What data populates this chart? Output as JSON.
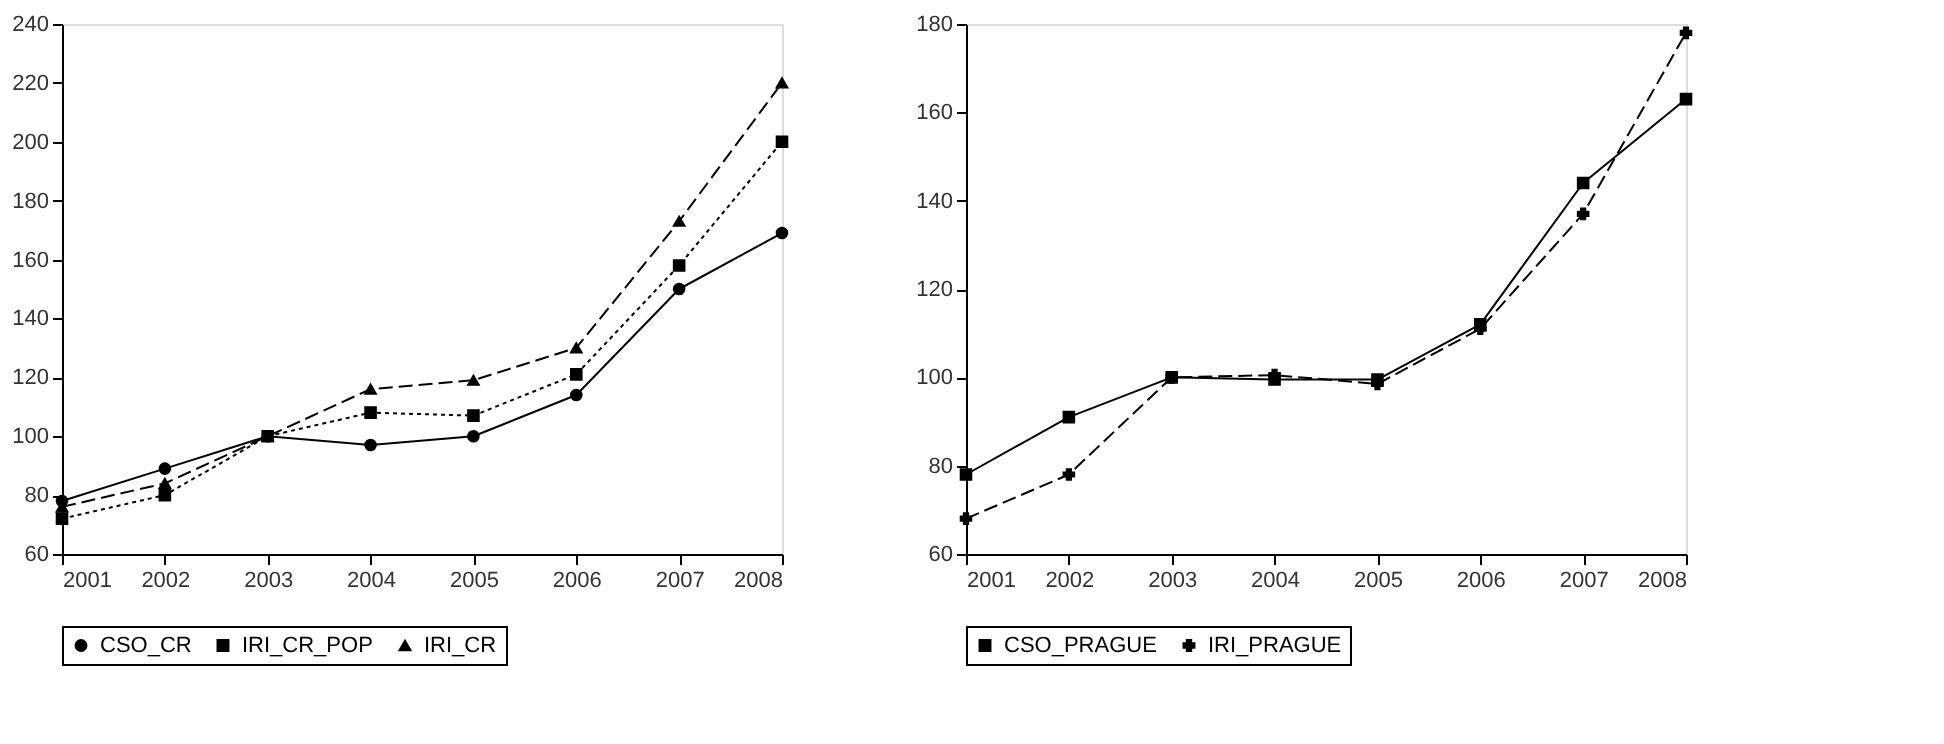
{
  "chart_data": [
    {
      "type": "line",
      "x": [
        2001,
        2002,
        2003,
        2004,
        2005,
        2006,
        2007,
        2008
      ],
      "xlim": [
        2001,
        2008
      ],
      "xticks": [
        2001,
        2002,
        2003,
        2004,
        2005,
        2006,
        2007,
        2008
      ],
      "ylim": [
        60,
        240
      ],
      "yticks": [
        60,
        80,
        100,
        120,
        140,
        160,
        180,
        200,
        220,
        240
      ],
      "grid": false,
      "legend": "bottom",
      "series": [
        {
          "name": "CSO_CR",
          "color": "#000000",
          "marker": "circle",
          "line_style": "solid",
          "values": [
            78,
            89,
            100,
            97,
            100,
            114,
            150,
            169
          ]
        },
        {
          "name": "IRI_CR_POP",
          "color": "#000000",
          "marker": "square",
          "line_style": "dotted",
          "values": [
            72,
            80,
            100,
            108,
            107,
            121,
            158,
            200
          ]
        },
        {
          "name": "IRI_CR",
          "color": "#000000",
          "marker": "triangle",
          "line_style": "dashed",
          "values": [
            76,
            84,
            100,
            116,
            119,
            130,
            173,
            220
          ]
        }
      ]
    },
    {
      "type": "line",
      "x": [
        2001,
        2002,
        2003,
        2004,
        2005,
        2006,
        2007,
        2008
      ],
      "xlim": [
        2001,
        2008
      ],
      "xticks": [
        2001,
        2002,
        2003,
        2004,
        2005,
        2006,
        2007,
        2008
      ],
      "ylim": [
        60,
        180
      ],
      "yticks": [
        60,
        80,
        100,
        120,
        140,
        160,
        180
      ],
      "grid": false,
      "legend": "bottom",
      "series": [
        {
          "name": "CSO_PRAGUE",
          "color": "#000000",
          "marker": "square",
          "line_style": "solid",
          "values": [
            78,
            91,
            100,
            99.5,
            99.5,
            112,
            144,
            163
          ]
        },
        {
          "name": "IRI_PRAGUE",
          "color": "#000000",
          "marker": "cross",
          "line_style": "dashed",
          "values": [
            68,
            78,
            100,
            100.5,
            98.5,
            111,
            137,
            178
          ]
        }
      ]
    }
  ]
}
